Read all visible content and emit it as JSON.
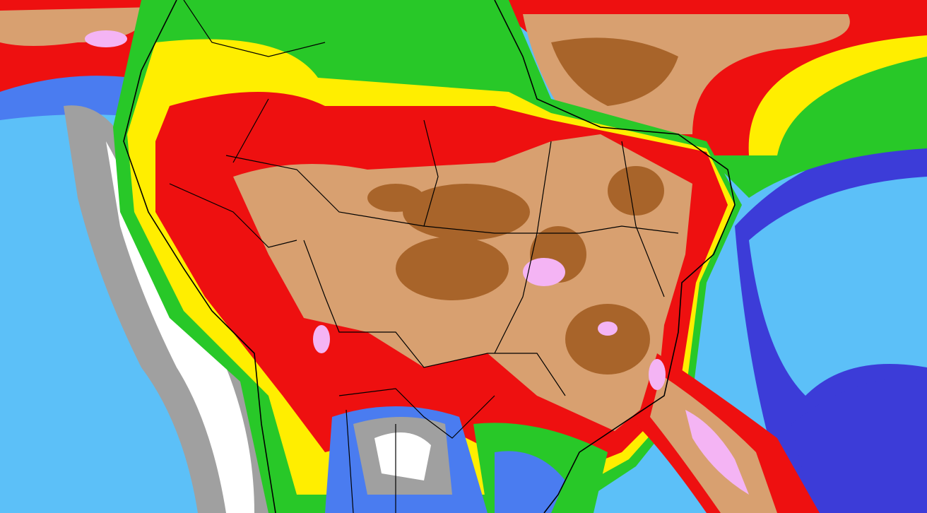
{
  "map": {
    "region": "",
    "palette": {
      "ocean": "#5cc0f8",
      "deep_blue": "#3c3cd8",
      "blue": "#4a7cf0",
      "teal": "#20d8c8",
      "green": "#28c828",
      "yellow": "#ffee00",
      "orange": "#ff8000",
      "red": "#ee1010",
      "dark_red": "#c80000",
      "tan": "#d8a070",
      "brown": "#a8642a",
      "pink": "#f4b4f4",
      "gray": "#a0a0a0",
      "white": "#ffffff",
      "border": "#000000"
    }
  }
}
